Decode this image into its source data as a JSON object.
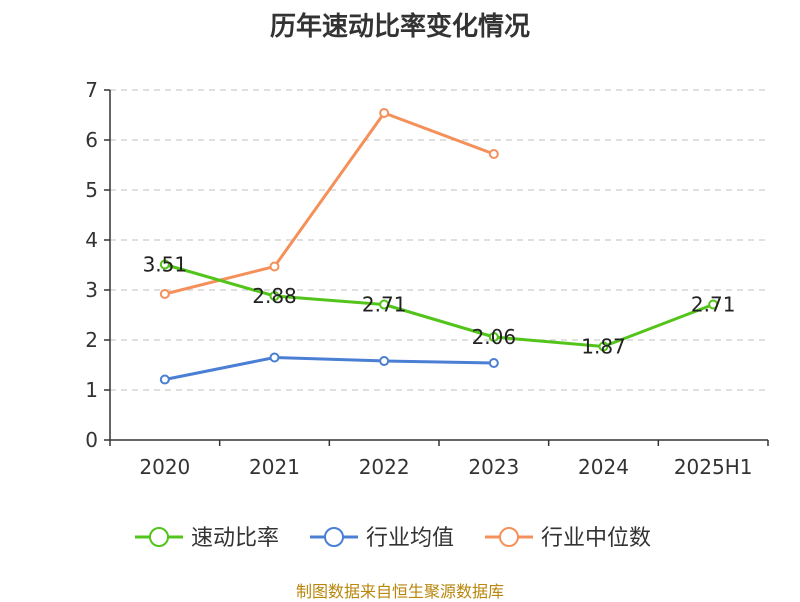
{
  "chart_data": {
    "type": "line",
    "title": "历年速动比率变化情况",
    "categories": [
      "2020",
      "2021",
      "2022",
      "2023",
      "2024",
      "2025H1"
    ],
    "ylim": [
      0,
      7
    ],
    "yticks": [
      0,
      1,
      2,
      3,
      4,
      5,
      6,
      7
    ],
    "grid": true,
    "legend_position": "bottom",
    "series": [
      {
        "name": "速动比率",
        "color": "#52c41a",
        "values": [
          3.51,
          2.88,
          2.71,
          2.06,
          1.87,
          2.71
        ],
        "labels": [
          "3.51",
          "2.88",
          "2.71",
          "2.06",
          "1.87",
          "2.71"
        ]
      },
      {
        "name": "行业均值",
        "color": "#4a7fd4",
        "values": [
          1.21,
          1.65,
          1.58,
          1.54,
          null,
          null
        ]
      },
      {
        "name": "行业中位数",
        "color": "#f5905a",
        "values": [
          2.92,
          3.47,
          6.54,
          5.72,
          null,
          null
        ]
      }
    ]
  },
  "footer": {
    "source": "制图数据来自恒生聚源数据库"
  }
}
